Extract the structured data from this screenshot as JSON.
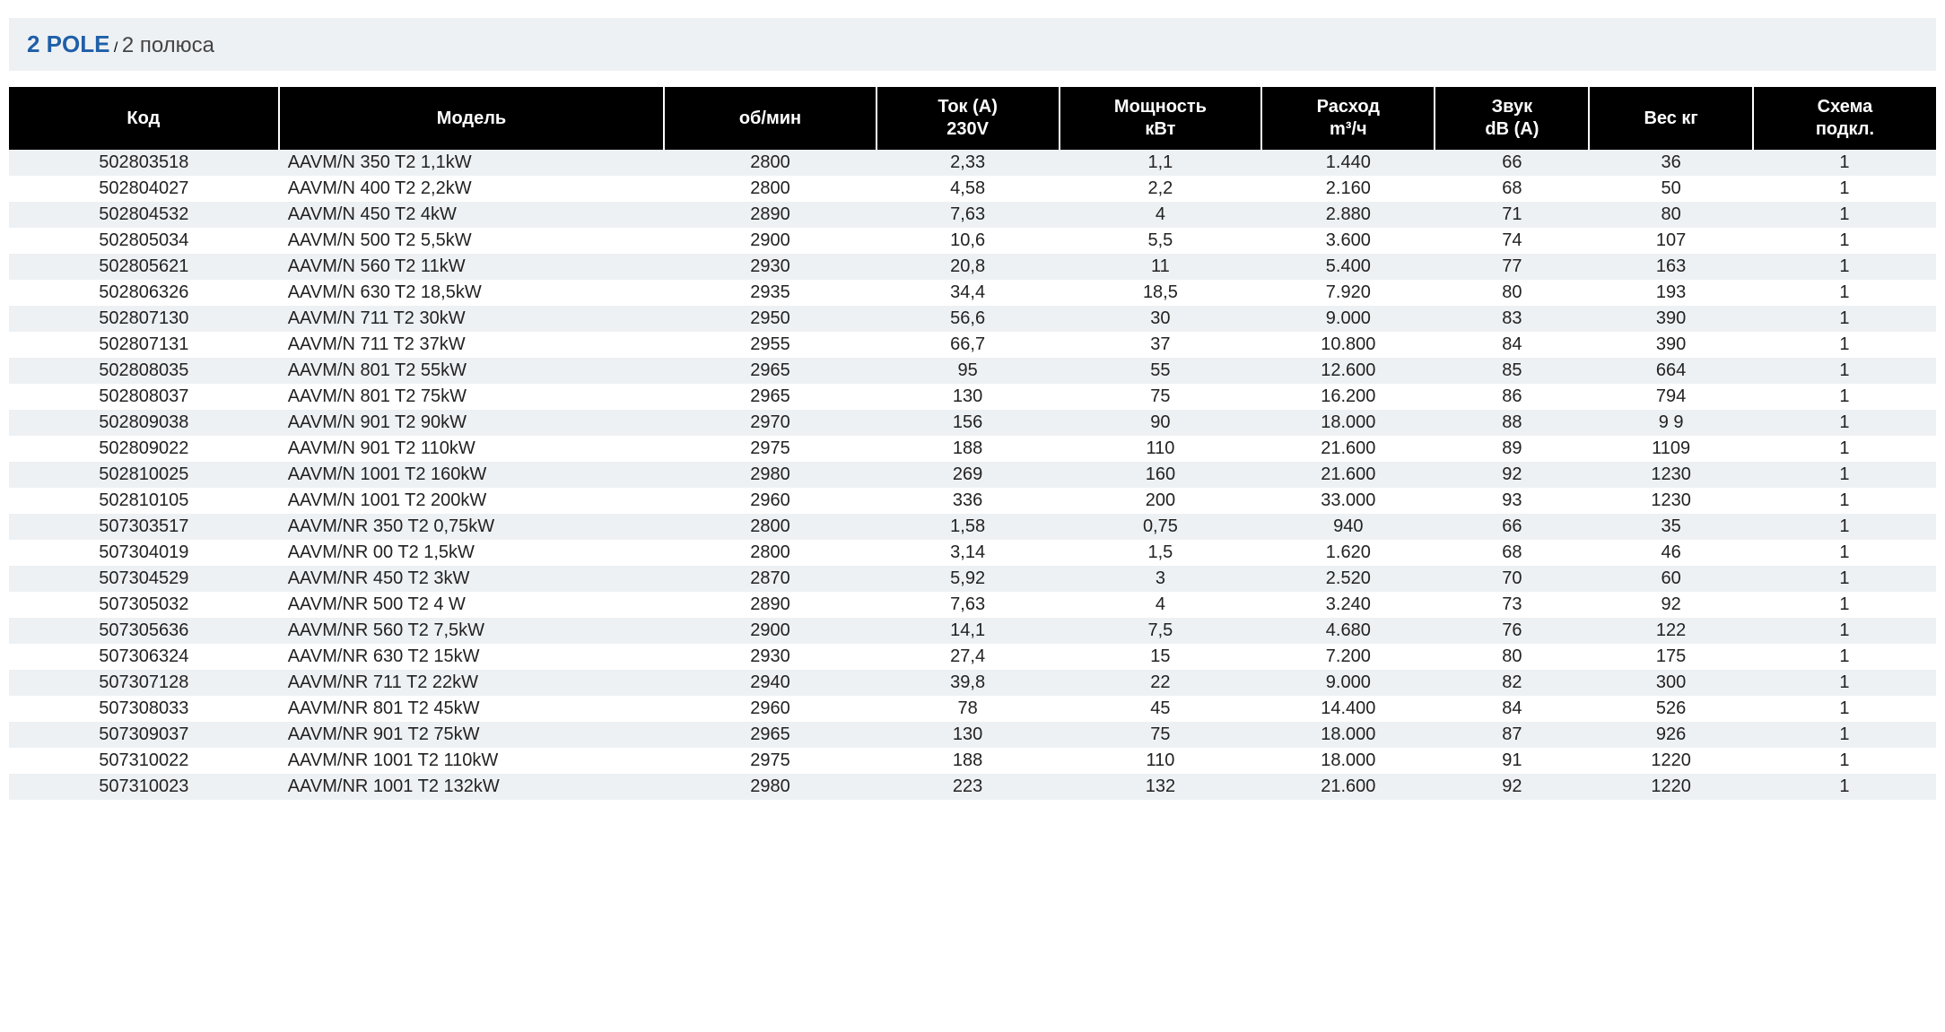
{
  "header": {
    "title_main": "2 POLE",
    "title_sep": " / ",
    "title_sub": "2 полюса"
  },
  "table": {
    "type": "table",
    "header_bg": "#000000",
    "header_fg": "#ffffff",
    "row_even_bg": "#eef1f4",
    "row_odd_bg": "#ffffff",
    "text_color": "#222222",
    "title_color": "#1f5fa8",
    "font_size_body": 20,
    "font_size_header": 20,
    "columns": [
      {
        "key": "code",
        "label": "Код",
        "align": "center",
        "width_pct": 14
      },
      {
        "key": "model",
        "label": "Модель",
        "align": "left",
        "width_pct": 20
      },
      {
        "key": "rpm",
        "label": "об/мин",
        "align": "center",
        "width_pct": 11
      },
      {
        "key": "amps",
        "label": "Ток (А)\n230V",
        "align": "center",
        "width_pct": 9.5
      },
      {
        "key": "power",
        "label": "Мощность\nкВт",
        "align": "center",
        "width_pct": 10.5
      },
      {
        "key": "flow",
        "label": "Расход\nm³/ч",
        "align": "center",
        "width_pct": 9
      },
      {
        "key": "sound",
        "label": "Звук\ndB (A)",
        "align": "center",
        "width_pct": 8
      },
      {
        "key": "weight",
        "label": "Вес кг",
        "align": "center",
        "width_pct": 8.5
      },
      {
        "key": "scheme",
        "label": "Схема\nподкл.",
        "align": "center",
        "width_pct": 9.5
      }
    ],
    "rows": [
      {
        "code": "502803518",
        "model": "AAVM/N 350 T2 1,1kW",
        "rpm": "2800",
        "amps": "2,33",
        "power": "1,1",
        "flow": "1.440",
        "sound": "66",
        "weight": "36",
        "scheme": "1"
      },
      {
        "code": "502804027",
        "model": "AAVM/N 400 T2 2,2kW",
        "rpm": "2800",
        "amps": "4,58",
        "power": "2,2",
        "flow": "2.160",
        "sound": "68",
        "weight": "50",
        "scheme": "1"
      },
      {
        "code": "502804532",
        "model": "AAVM/N 450 T2 4kW",
        "rpm": "2890",
        "amps": "7,63",
        "power": "4",
        "flow": "2.880",
        "sound": "71",
        "weight": "80",
        "scheme": "1"
      },
      {
        "code": "502805034",
        "model": "AAVM/N 500 T2 5,5kW",
        "rpm": "2900",
        "amps": "10,6",
        "power": "5,5",
        "flow": "3.600",
        "sound": "74",
        "weight": "107",
        "scheme": "1"
      },
      {
        "code": "502805621",
        "model": "AAVM/N 560 T2 11kW",
        "rpm": "2930",
        "amps": "20,8",
        "power": "11",
        "flow": "5.400",
        "sound": "77",
        "weight": "163",
        "scheme": "1"
      },
      {
        "code": "502806326",
        "model": "AAVM/N 630 T2 18,5kW",
        "rpm": "2935",
        "amps": "34,4",
        "power": "18,5",
        "flow": "7.920",
        "sound": "80",
        "weight": "193",
        "scheme": "1"
      },
      {
        "code": "502807130",
        "model": "AAVM/N 711 T2 30kW",
        "rpm": "2950",
        "amps": "56,6",
        "power": "30",
        "flow": "9.000",
        "sound": "83",
        "weight": "390",
        "scheme": "1"
      },
      {
        "code": "502807131",
        "model": "AAVM/N 711 T2 37kW",
        "rpm": "2955",
        "amps": "66,7",
        "power": "37",
        "flow": "10.800",
        "sound": "84",
        "weight": "390",
        "scheme": "1"
      },
      {
        "code": "502808035",
        "model": "AAVM/N 801 T2 55kW",
        "rpm": "2965",
        "amps": "95",
        "power": "55",
        "flow": "12.600",
        "sound": "85",
        "weight": "664",
        "scheme": "1"
      },
      {
        "code": "502808037",
        "model": "AAVM/N 801 T2 75kW",
        "rpm": "2965",
        "amps": "130",
        "power": "75",
        "flow": "16.200",
        "sound": "86",
        "weight": "794",
        "scheme": "1"
      },
      {
        "code": "502809038",
        "model": "AAVM/N 901 T2 90kW",
        "rpm": "2970",
        "amps": "156",
        "power": "90",
        "flow": "18.000",
        "sound": "88",
        "weight": "9 9",
        "scheme": "1"
      },
      {
        "code": "502809022",
        "model": "AAVM/N 901 T2 110kW",
        "rpm": "2975",
        "amps": "188",
        "power": "110",
        "flow": "21.600",
        "sound": "89",
        "weight": "1109",
        "scheme": "1"
      },
      {
        "code": "502810025",
        "model": "AAVM/N 1001 T2 160kW",
        "rpm": "2980",
        "amps": "269",
        "power": "160",
        "flow": "21.600",
        "sound": "92",
        "weight": "1230",
        "scheme": "1"
      },
      {
        "code": "502810105",
        "model": "AAVM/N 1001 T2 200kW",
        "rpm": "2960",
        "amps": "336",
        "power": "200",
        "flow": "33.000",
        "sound": "93",
        "weight": "1230",
        "scheme": "1"
      },
      {
        "code": "507303517",
        "model": "AAVM/NR 350 T2 0,75kW",
        "rpm": "2800",
        "amps": "1,58",
        "power": "0,75",
        "flow": "940",
        "sound": "66",
        "weight": "35",
        "scheme": "1"
      },
      {
        "code": "507304019",
        "model": "AAVM/NR  00 T2 1,5kW",
        "rpm": "2800",
        "amps": "3,14",
        "power": "1,5",
        "flow": "1.620",
        "sound": "68",
        "weight": "46",
        "scheme": "1"
      },
      {
        "code": "507304529",
        "model": "AAVM/NR 450 T2 3kW",
        "rpm": "2870",
        "amps": "5,92",
        "power": "3",
        "flow": "2.520",
        "sound": "70",
        "weight": "60",
        "scheme": "1"
      },
      {
        "code": "507305032",
        "model": "AAVM/NR 500 T2 4 W",
        "rpm": "2890",
        "amps": "7,63",
        "power": "4",
        "flow": "3.240",
        "sound": "73",
        "weight": "92",
        "scheme": "1"
      },
      {
        "code": "507305636",
        "model": "AAVM/NR 560 T2 7,5kW",
        "rpm": "2900",
        "amps": "14,1",
        "power": "7,5",
        "flow": "4.680",
        "sound": "76",
        "weight": "122",
        "scheme": "1"
      },
      {
        "code": "507306324",
        "model": "AAVM/NR 630 T2 15kW",
        "rpm": "2930",
        "amps": "27,4",
        "power": "15",
        "flow": "7.200",
        "sound": "80",
        "weight": "175",
        "scheme": "1"
      },
      {
        "code": "507307128",
        "model": "AAVM/NR 711 T2 22kW",
        "rpm": "2940",
        "amps": "39,8",
        "power": "22",
        "flow": "9.000",
        "sound": "82",
        "weight": "300",
        "scheme": "1"
      },
      {
        "code": "507308033",
        "model": "AAVM/NR 801 T2 45kW",
        "rpm": "2960",
        "amps": "78",
        "power": "45",
        "flow": "14.400",
        "sound": "84",
        "weight": "526",
        "scheme": "1"
      },
      {
        "code": "507309037",
        "model": "AAVM/NR 901 T2 75kW",
        "rpm": "2965",
        "amps": "130",
        "power": "75",
        "flow": "18.000",
        "sound": "87",
        "weight": "926",
        "scheme": "1"
      },
      {
        "code": "507310022",
        "model": "AAVM/NR 1001 T2 110kW",
        "rpm": "2975",
        "amps": "188",
        "power": "110",
        "flow": "18.000",
        "sound": "91",
        "weight": "1220",
        "scheme": "1"
      },
      {
        "code": "507310023",
        "model": "AAVM/NR 1001 T2 132kW",
        "rpm": "2980",
        "amps": "223",
        "power": "132",
        "flow": "21.600",
        "sound": "92",
        "weight": "1220",
        "scheme": "1"
      }
    ]
  }
}
